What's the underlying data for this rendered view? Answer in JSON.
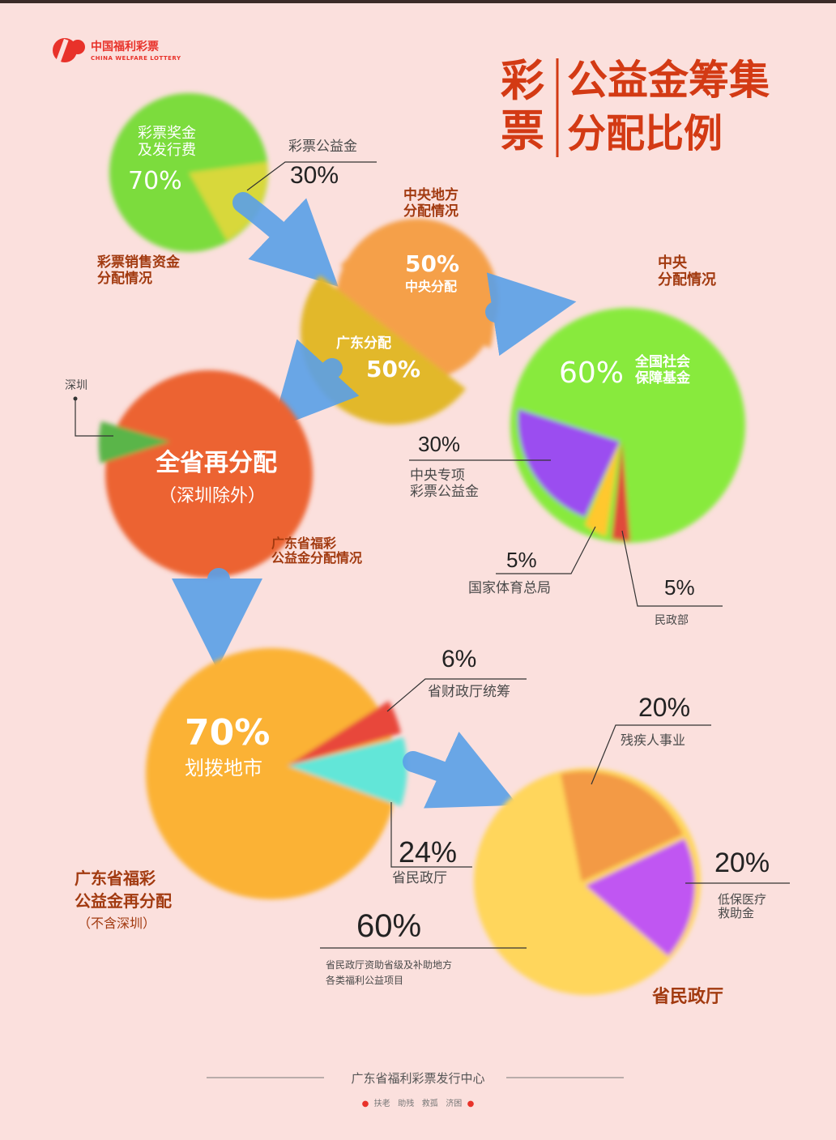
{
  "logo": {
    "cn": "中国福利彩票",
    "en": "CHINA WELFARE LOTTERY"
  },
  "title": {
    "side": [
      "彩",
      "票"
    ],
    "line1": "公益金筹集",
    "line2": "分配比例"
  },
  "colors": {
    "background": "#fbe0dd",
    "accent": "#d33a14",
    "green": "#7bdc3c",
    "orange": "#ee6a2e",
    "amber": "#fbb236",
    "purple": "#b357f2",
    "cyan": "#62e6d8",
    "arrow": "#5aa0e8"
  },
  "chart_data": [
    {
      "type": "pie",
      "title": "彩票销售资金分配情况",
      "series": [
        {
          "label": "彩票奖金及发行费",
          "value": 70,
          "display": "70%"
        },
        {
          "label": "彩票公益金",
          "value": 30,
          "display": "30%"
        }
      ]
    },
    {
      "type": "pie",
      "title": "中央地方分配情况",
      "series": [
        {
          "label": "中央分配",
          "value": 50,
          "display": "50%"
        },
        {
          "label": "广东分配",
          "value": 50,
          "display": "50%"
        }
      ]
    },
    {
      "type": "pie",
      "title": "中央分配情况",
      "series": [
        {
          "label": "全国社会保障基金",
          "value": 60,
          "display": "60%"
        },
        {
          "label": "中央专项彩票公益金",
          "value": 30,
          "display": "30%"
        },
        {
          "label": "国家体育总局",
          "value": 5,
          "display": "5%"
        },
        {
          "label": "民政部",
          "value": 5,
          "display": "5%"
        }
      ]
    },
    {
      "type": "pie",
      "title": "广东省福彩公益金分配情况",
      "series": [
        {
          "label": "全省再分配",
          "sublabel": "（深圳除外）"
        },
        {
          "label": "深圳"
        }
      ]
    },
    {
      "type": "pie",
      "title": "广东省福彩公益金再分配",
      "subtitle": "（不含深圳）",
      "series": [
        {
          "label": "划拨地市",
          "value": 70,
          "display": "70%"
        },
        {
          "label": "省财政厅统筹",
          "value": 6,
          "display": "6%"
        },
        {
          "label": "省民政厅",
          "value": 24,
          "display": "24%"
        }
      ]
    },
    {
      "type": "pie",
      "title": "省民政厅",
      "series": [
        {
          "label": "省民政厅资助省级及补助地方各类福利公益项目",
          "value": 60,
          "display": "60%"
        },
        {
          "label": "残疾人事业",
          "value": 20,
          "display": "20%"
        },
        {
          "label": "低保医疗救助金",
          "value": 20,
          "display": "20%"
        }
      ]
    }
  ],
  "pie1": {
    "inner_label": "彩票奖金\n及发行费",
    "inner_pct": "70%",
    "slice_label": "彩票公益金",
    "slice_pct": "30%",
    "caption": "彩票销售资金\n分配情况"
  },
  "pie2": {
    "caption": "中央地方\n分配情况",
    "top_pct": "50%",
    "top_label": "中央分配",
    "bottom_label": "广东分配",
    "bottom_pct": "50%"
  },
  "pie3": {
    "caption": "中央\n分配情况",
    "main_pct": "60%",
    "main_label": "全国社会\n保障基金",
    "purple_pct": "30%",
    "purple_label": "中央专项\n彩票公益金",
    "yellow_pct": "5%",
    "yellow_label": "国家体育总局",
    "red_pct": "5%",
    "red_label": "民政部"
  },
  "pie4": {
    "title": "全省再分配",
    "sub": "（深圳除外）",
    "callout": "深圳",
    "caption": "广东省福彩\n公益金分配情况"
  },
  "pie5": {
    "main_pct": "70%",
    "main_label": "划拨地市",
    "red_pct": "6%",
    "red_label": "省财政厅统筹",
    "cyan_pct": "24%",
    "cyan_label": "省民政厅",
    "caption": "广东省福彩\n公益金再分配",
    "caption_sub": "（不含深圳）"
  },
  "pie6": {
    "orange_pct": "20%",
    "orange_label": "残疾人事业",
    "purple_pct": "20%",
    "purple_label": "低保医疗\n救助金",
    "yellow_pct": "60%",
    "yellow_label": "省民政厅资助省级及补助地方\n各类福利公益项目",
    "caption": "省民政厅"
  },
  "footer": {
    "org": "广东省福利彩票发行中心",
    "tags": [
      "扶老",
      "助残",
      "救孤",
      "济困"
    ]
  }
}
